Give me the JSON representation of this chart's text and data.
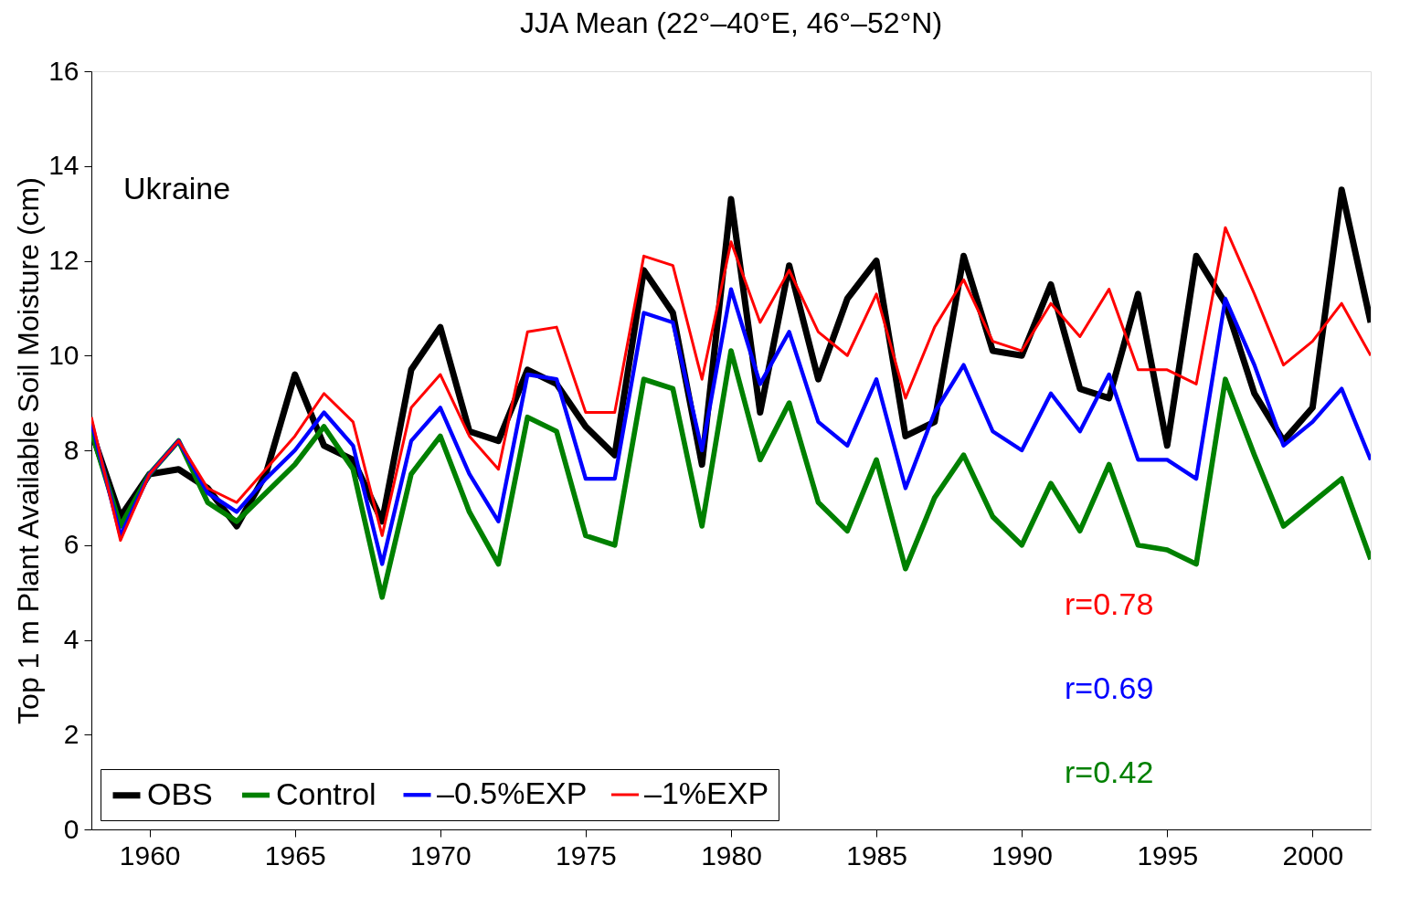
{
  "chart_data": {
    "type": "line",
    "title": "JJA Mean (22°–40°E, 46°–52°N)",
    "ylabel": "Top 1 m Plant Available Soil Moisture (cm)",
    "x": [
      1958,
      1959,
      1960,
      1961,
      1962,
      1963,
      1964,
      1965,
      1966,
      1967,
      1968,
      1969,
      1970,
      1971,
      1972,
      1973,
      1974,
      1975,
      1976,
      1977,
      1978,
      1979,
      1980,
      1981,
      1982,
      1983,
      1984,
      1985,
      1986,
      1987,
      1988,
      1989,
      1990,
      1991,
      1992,
      1993,
      1994,
      1995,
      1996,
      1997,
      1998,
      1999,
      2000,
      2001,
      2002
    ],
    "series": [
      {
        "name": "OBS",
        "color": "#000000",
        "values": [
          8.4,
          6.6,
          7.5,
          7.6,
          7.2,
          6.4,
          7.5,
          9.6,
          8.1,
          7.8,
          6.5,
          9.7,
          10.6,
          8.4,
          8.2,
          9.7,
          9.4,
          8.5,
          7.9,
          11.8,
          10.9,
          7.7,
          13.3,
          8.8,
          11.9,
          9.5,
          11.2,
          12.0,
          8.3,
          8.6,
          12.1,
          10.1,
          10.0,
          11.5,
          9.3,
          9.1,
          11.3,
          8.1,
          12.1,
          11.1,
          9.2,
          8.2,
          8.9,
          13.5,
          10.7
        ]
      },
      {
        "name": "Control",
        "color": "#008000",
        "values": [
          8.4,
          6.4,
          7.5,
          8.2,
          6.9,
          6.5,
          7.1,
          7.7,
          8.5,
          7.6,
          4.9,
          7.5,
          8.3,
          6.7,
          5.6,
          8.7,
          8.4,
          6.2,
          6.0,
          9.5,
          9.3,
          6.4,
          10.1,
          7.8,
          9.0,
          6.9,
          6.3,
          7.8,
          5.5,
          7.0,
          7.9,
          6.6,
          6.0,
          7.3,
          6.3,
          7.7,
          6.0,
          5.9,
          5.6,
          9.5,
          7.9,
          6.4,
          6.9,
          7.4,
          5.7
        ]
      },
      {
        "name": "–0.5%EXP",
        "color": "#0000ff",
        "values": [
          8.6,
          6.2,
          7.5,
          8.2,
          7.1,
          6.7,
          7.4,
          8.0,
          8.8,
          8.1,
          5.6,
          8.2,
          8.9,
          7.5,
          6.5,
          9.6,
          9.5,
          7.4,
          7.4,
          10.9,
          10.7,
          8.0,
          11.4,
          9.4,
          10.5,
          8.6,
          8.1,
          9.5,
          7.2,
          8.8,
          9.8,
          8.4,
          8.0,
          9.2,
          8.4,
          9.6,
          7.8,
          7.8,
          7.4,
          11.2,
          9.8,
          8.1,
          8.6,
          9.3,
          7.8
        ]
      },
      {
        "name": "–1%EXP",
        "color": "#ff0000",
        "values": [
          8.7,
          6.1,
          7.5,
          8.2,
          7.2,
          6.9,
          7.6,
          8.3,
          9.2,
          8.6,
          6.2,
          8.9,
          9.6,
          8.3,
          7.6,
          10.5,
          10.6,
          8.8,
          8.8,
          12.1,
          11.9,
          9.5,
          12.4,
          10.7,
          11.8,
          10.5,
          10.0,
          11.3,
          9.1,
          10.6,
          11.6,
          10.3,
          10.1,
          11.1,
          10.4,
          11.4,
          9.7,
          9.7,
          9.4,
          12.7,
          11.3,
          9.8,
          10.3,
          11.1,
          10.0
        ]
      }
    ],
    "xlim": [
      1958,
      2002
    ],
    "xticks": [
      1960,
      1965,
      1970,
      1975,
      1980,
      1985,
      1990,
      1995,
      2000
    ],
    "ylim": [
      0,
      16
    ],
    "yticks": [
      0,
      2,
      4,
      6,
      8,
      10,
      12,
      14,
      16
    ],
    "grid": false,
    "legend": "bottom left",
    "marker": "none",
    "line_style": "solid",
    "annotations": [
      "Ukraine",
      "r=0.78",
      "r=0.69",
      "r=0.42"
    ]
  }
}
